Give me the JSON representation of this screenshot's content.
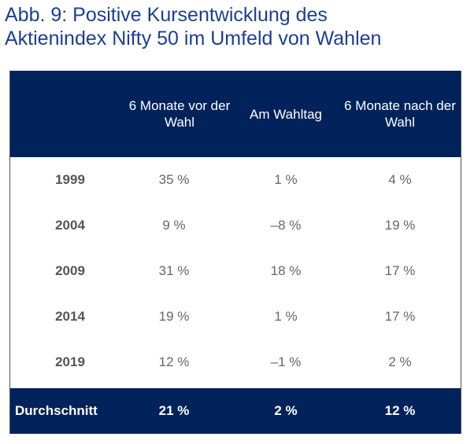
{
  "title_line1": "Abb. 9: Positive Kursentwicklung des",
  "title_line2": "Aktienindex Nifty 50 im Umfeld von Wahlen",
  "colors": {
    "header_bg": "#02225c",
    "title": "#1b3f93"
  },
  "chart_data": {
    "type": "table",
    "columns": [
      "",
      "6 Monate vor der Wahl",
      "Am Wahltag",
      "6 Monate nach der Wahl"
    ],
    "rows": [
      [
        "1999",
        "35 %",
        "1 %",
        "4 %"
      ],
      [
        "2004",
        "9 %",
        "–8 %",
        "19 %"
      ],
      [
        "2009",
        "31 %",
        "18 %",
        "17 %"
      ],
      [
        "2014",
        "19 %",
        "1 %",
        "17 %"
      ],
      [
        "2019",
        "12 %",
        "–1 %",
        "2 %"
      ]
    ],
    "footer": [
      "Durchschnitt",
      "21 %",
      "2 %",
      "12 %"
    ]
  }
}
